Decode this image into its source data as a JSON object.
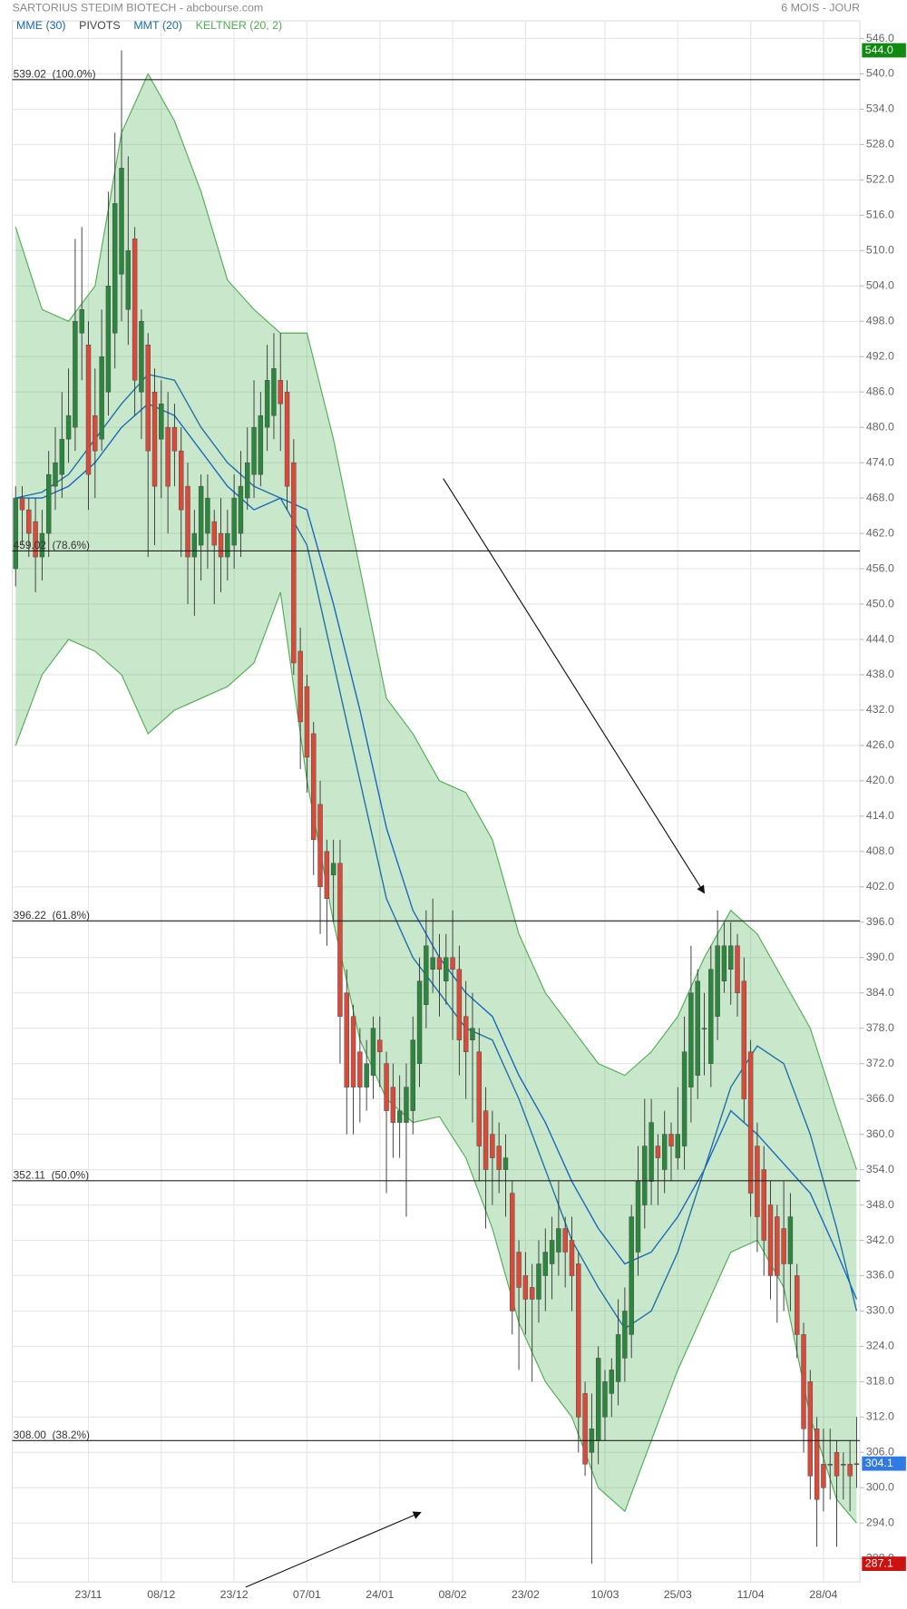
{
  "chart_data": {
    "type": "candlestick",
    "title": "SARTORIUS STEDIM BIOTECH - abcbourse.com",
    "period": "6 MOIS - JOUR",
    "up_color": "#2e8540",
    "down_color": "#d84b3c",
    "grid": true,
    "categories": [
      null,
      null,
      null,
      null,
      null,
      null,
      null,
      null,
      null,
      null,
      null,
      "23/11",
      null,
      null,
      null,
      null,
      null,
      null,
      null,
      null,
      null,
      null,
      "08/12",
      null,
      null,
      null,
      null,
      null,
      null,
      null,
      null,
      null,
      null,
      "23/12",
      null,
      null,
      null,
      null,
      null,
      null,
      null,
      null,
      null,
      null,
      "07/01",
      null,
      null,
      null,
      null,
      null,
      null,
      null,
      null,
      null,
      null,
      "24/01",
      null,
      null,
      null,
      null,
      null,
      null,
      null,
      null,
      null,
      null,
      "08/02",
      null,
      null,
      null,
      null,
      null,
      null,
      null,
      null,
      null,
      null,
      "23/02",
      null,
      null,
      null,
      null,
      null,
      null,
      null,
      null,
      null,
      null,
      null,
      "10/03",
      null,
      null,
      null,
      null,
      null,
      null,
      null,
      null,
      null,
      null,
      "25/03",
      null,
      null,
      null,
      null,
      null,
      null,
      null,
      null,
      null,
      null,
      "11/04",
      null,
      null,
      null,
      null,
      null,
      null,
      null,
      null,
      null,
      null,
      "28/04",
      null,
      null,
      null,
      null,
      null
    ],
    "candles": {
      "open": [
        456,
        468,
        466,
        464,
        458,
        462,
        470,
        472,
        478,
        480,
        496,
        494,
        482,
        478,
        486,
        496,
        506,
        500,
        512,
        486,
        494,
        486,
        478,
        480,
        480,
        476,
        470,
        458,
        460,
        462,
        464,
        462,
        458,
        460,
        462,
        468,
        472,
        472,
        480,
        482,
        488,
        486,
        474,
        442,
        436,
        428,
        416,
        408,
        404,
        406,
        384,
        380,
        374,
        368,
        370,
        376,
        372,
        368,
        362,
        362,
        364,
        372,
        382,
        388,
        390,
        386,
        390,
        388,
        380,
        376,
        374,
        364,
        360,
        358,
        354,
        350,
        340,
        336,
        334,
        332,
        336,
        338,
        340,
        344,
        342,
        338,
        316,
        306,
        308,
        312,
        316,
        318,
        322,
        326,
        340,
        348,
        352,
        358,
        354,
        360,
        356,
        358,
        368,
        370,
        378,
        372,
        380,
        386,
        388,
        392,
        386,
        374,
        358,
        354,
        348,
        346,
        344,
        338,
        336,
        326,
        318,
        310,
        304,
        304,
        306,
        304,
        304,
        304
      ],
      "high": [
        470,
        470,
        468,
        468,
        466,
        476,
        480,
        486,
        490,
        512,
        514,
        498,
        490,
        500,
        520,
        530,
        544,
        526,
        514,
        500,
        496,
        490,
        488,
        486,
        484,
        480,
        474,
        466,
        472,
        472,
        466,
        468,
        466,
        472,
        476,
        480,
        488,
        486,
        494,
        496,
        496,
        488,
        478,
        446,
        438,
        430,
        420,
        410,
        410,
        410,
        388,
        382,
        378,
        376,
        380,
        380,
        374,
        372,
        370,
        372,
        380,
        390,
        398,
        400,
        394,
        394,
        398,
        392,
        386,
        384,
        378,
        368,
        364,
        362,
        360,
        352,
        342,
        340,
        338,
        342,
        344,
        346,
        352,
        346,
        346,
        340,
        318,
        316,
        324,
        320,
        322,
        332,
        334,
        348,
        358,
        366,
        366,
        360,
        364,
        362,
        368,
        380,
        392,
        388,
        384,
        392,
        398,
        396,
        396,
        394,
        390,
        376,
        362,
        358,
        352,
        348,
        352,
        350,
        338,
        328,
        320,
        312,
        310,
        310,
        308,
        306,
        308,
        312
      ],
      "low": [
        453,
        460,
        458,
        452,
        454,
        458,
        466,
        468,
        474,
        476,
        488,
        466,
        468,
        476,
        482,
        490,
        498,
        494,
        482,
        478,
        458,
        460,
        468,
        462,
        470,
        458,
        450,
        448,
        454,
        456,
        450,
        452,
        454,
        456,
        458,
        466,
        468,
        470,
        476,
        478,
        476,
        466,
        438,
        422,
        418,
        404,
        394,
        392,
        396,
        372,
        360,
        360,
        362,
        364,
        366,
        368,
        350,
        356,
        356,
        346,
        360,
        368,
        378,
        384,
        380,
        382,
        376,
        370,
        366,
        362,
        352,
        344,
        348,
        350,
        346,
        326,
        320,
        326,
        318,
        328,
        330,
        332,
        336,
        334,
        330,
        306,
        302,
        287.1,
        304,
        308,
        312,
        314,
        318,
        322,
        336,
        344,
        348,
        348,
        350,
        352,
        354,
        354,
        362,
        366,
        370,
        368,
        376,
        384,
        382,
        380,
        362,
        346,
        340,
        336,
        332,
        328,
        330,
        330,
        322,
        306,
        298,
        290,
        296,
        298,
        290,
        298,
        296,
        300
      ],
      "close": [
        468,
        466,
        462,
        458,
        462,
        472,
        474,
        478,
        482,
        498,
        500,
        472,
        476,
        492,
        504,
        518,
        524,
        510,
        488,
        498,
        476,
        470,
        484,
        470,
        476,
        466,
        458,
        462,
        470,
        468,
        460,
        458,
        462,
        468,
        470,
        474,
        480,
        482,
        488,
        490,
        484,
        470,
        440,
        430,
        424,
        410,
        402,
        400,
        406,
        380,
        368,
        368,
        368,
        372,
        378,
        374,
        364,
        362,
        364,
        368,
        376,
        386,
        392,
        390,
        388,
        390,
        388,
        376,
        374,
        378,
        358,
        354,
        356,
        354,
        356,
        330,
        334,
        332,
        332,
        338,
        340,
        342,
        344,
        340,
        336,
        312,
        304,
        310,
        322,
        318,
        320,
        326,
        330,
        346,
        352,
        358,
        362,
        356,
        360,
        358,
        360,
        374,
        384,
        386,
        378,
        388,
        392,
        392,
        392,
        384,
        366,
        350,
        346,
        342,
        336,
        336,
        338,
        346,
        326,
        310,
        302,
        298,
        300,
        304,
        302,
        304,
        302,
        304.1
      ]
    },
    "series": [
      {
        "name": "MME (30)",
        "color": "#1565c0",
        "x": [
          0,
          4,
          8,
          12,
          16,
          20,
          24,
          28,
          32,
          36,
          40,
          44,
          48,
          52,
          56,
          60,
          64,
          68,
          72,
          76,
          80,
          84,
          88,
          92,
          96,
          100,
          104,
          108,
          112,
          116,
          120,
          124,
          127
        ],
        "values": [
          468,
          468,
          470,
          474,
          480,
          484,
          482,
          476,
          470,
          466,
          468,
          466,
          450,
          432,
          412,
          398,
          390,
          384,
          380,
          370,
          362,
          352,
          344,
          338,
          340,
          346,
          354,
          364,
          360,
          355,
          350,
          340,
          332
        ]
      },
      {
        "name": "PIVOTS",
        "color": "#444444",
        "levels": [
          {
            "value": 539.02,
            "label": "539.02  (100.0%)"
          },
          {
            "value": 459.02,
            "label": "459.02  (78.6%)"
          },
          {
            "value": 396.22,
            "label": "396.22  (61.8%)"
          },
          {
            "value": 352.11,
            "label": "352.11  (50.0%)"
          },
          {
            "value": 308.0,
            "label": "308.00  (38.2%)"
          }
        ]
      },
      {
        "name": "MMT (20)",
        "color": "#1a6fa8",
        "x": [
          0,
          4,
          8,
          12,
          16,
          20,
          24,
          28,
          32,
          36,
          40,
          44,
          48,
          52,
          56,
          60,
          64,
          68,
          72,
          76,
          80,
          84,
          88,
          92,
          96,
          100,
          104,
          108,
          112,
          116,
          120,
          124,
          127
        ],
        "values": [
          468,
          469,
          472,
          478,
          484,
          489,
          488,
          480,
          474,
          470,
          468,
          460,
          440,
          420,
          400,
          390,
          384,
          378,
          376,
          366,
          354,
          342,
          334,
          327,
          330,
          340,
          354,
          368,
          375,
          372,
          360,
          344,
          330
        ]
      },
      {
        "name": "KELTNER (20, 2)",
        "color": "#4caf50",
        "x": [
          0,
          4,
          8,
          12,
          16,
          20,
          24,
          28,
          32,
          36,
          40,
          44,
          48,
          52,
          56,
          60,
          64,
          68,
          72,
          76,
          80,
          84,
          88,
          92,
          96,
          100,
          104,
          108,
          112,
          116,
          120,
          124,
          127
        ],
        "upper": [
          514,
          500,
          498,
          504,
          530,
          540,
          532,
          520,
          505,
          500,
          496,
          496,
          478,
          456,
          434,
          428,
          420,
          418,
          410,
          394,
          384,
          378,
          372,
          370,
          374,
          380,
          390,
          398,
          394,
          386,
          378,
          364,
          354
        ],
        "lower": [
          426,
          438,
          444,
          442,
          438,
          428,
          432,
          434,
          436,
          440,
          452,
          420,
          396,
          376,
          366,
          362,
          363,
          356,
          344,
          328,
          318,
          312,
          300,
          296,
          308,
          320,
          330,
          340,
          342,
          334,
          312,
          298,
          294
        ]
      }
    ],
    "price_markers": [
      {
        "value": 544.0,
        "label": "544.0",
        "color": "#118a11"
      },
      {
        "value": 304.1,
        "label": "304.1",
        "color": "#2f7ae5"
      },
      {
        "value": 287.1,
        "label": "287.1",
        "color": "#cc1111"
      }
    ],
    "ylim": [
      284,
      549
    ],
    "yticks": [
      {
        "value": 288,
        "label": "288.0"
      },
      {
        "value": 294,
        "label": "294.0"
      },
      {
        "value": 300,
        "label": "300.0"
      },
      {
        "value": 306,
        "label": "306.0"
      },
      {
        "value": 312,
        "label": "312.0"
      },
      {
        "value": 318,
        "label": "318.0"
      },
      {
        "value": 324,
        "label": "324.0"
      },
      {
        "value": 330,
        "label": "330.0"
      },
      {
        "value": 336,
        "label": "336.0"
      },
      {
        "value": 342,
        "label": "342.0"
      },
      {
        "value": 348,
        "label": "348.0"
      },
      {
        "value": 354,
        "label": "354.0"
      },
      {
        "value": 360,
        "label": "360.0"
      },
      {
        "value": 366,
        "label": "366.0"
      },
      {
        "value": 372,
        "label": "372.0"
      },
      {
        "value": 378,
        "label": "378.0"
      },
      {
        "value": 384,
        "label": "384.0"
      },
      {
        "value": 390,
        "label": "390.0"
      },
      {
        "value": 396,
        "label": "396.0"
      },
      {
        "value": 402,
        "label": "402.0"
      },
      {
        "value": 408,
        "label": "408.0"
      },
      {
        "value": 414,
        "label": "414.0"
      },
      {
        "value": 420,
        "label": "420.0"
      },
      {
        "value": 426,
        "label": "426.0"
      },
      {
        "value": 432,
        "label": "432.0"
      },
      {
        "value": 438,
        "label": "438.0"
      },
      {
        "value": 444,
        "label": "444.0"
      },
      {
        "value": 450,
        "label": "450.0"
      },
      {
        "value": 456,
        "label": "456.0"
      },
      {
        "value": 462,
        "label": "462.0"
      },
      {
        "value": 468,
        "label": "468.0"
      },
      {
        "value": 474,
        "label": "474.0"
      },
      {
        "value": 480,
        "label": "480.0"
      },
      {
        "value": 486,
        "label": "486.0"
      },
      {
        "value": 492,
        "label": "492.0"
      },
      {
        "value": 498,
        "label": "498.0"
      },
      {
        "value": 504,
        "label": "504.0"
      },
      {
        "value": 510,
        "label": "510.0"
      },
      {
        "value": 516,
        "label": "516.0"
      },
      {
        "value": 522,
        "label": "522.0"
      },
      {
        "value": 528,
        "label": "528.0"
      },
      {
        "value": 534,
        "label": "534.0"
      },
      {
        "value": 540,
        "label": "540.0"
      },
      {
        "value": 546,
        "label": "546.0"
      }
    ]
  }
}
